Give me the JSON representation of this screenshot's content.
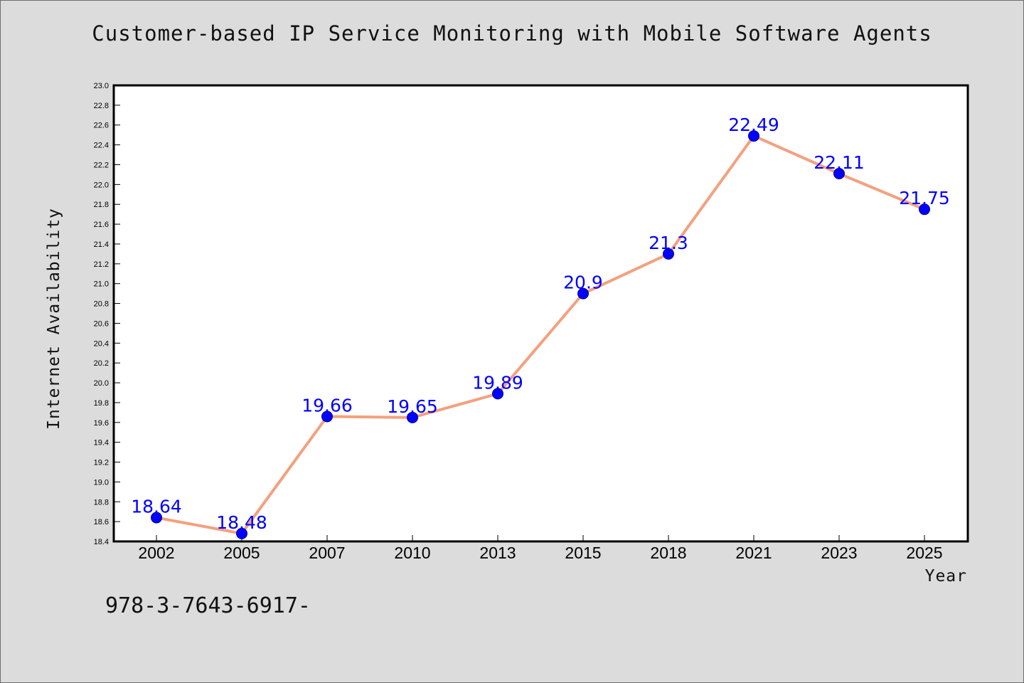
{
  "chart_data": {
    "type": "line",
    "title": "Customer-based IP Service Monitoring with Mobile Software Agents",
    "xlabel": "Year",
    "ylabel": "Internet Availability",
    "categories": [
      "2002",
      "2005",
      "2007",
      "2010",
      "2013",
      "2015",
      "2018",
      "2021",
      "2023",
      "2025"
    ],
    "series": [
      {
        "values": [
          18.64,
          18.48,
          19.66,
          19.65,
          19.89,
          20.9,
          21.3,
          22.49,
          22.11,
          21.75
        ]
      }
    ],
    "data_labels": [
      "18.64",
      "18.48",
      "19.66",
      "19.65",
      "19.89",
      "20.9",
      "21.3",
      "22.49",
      "22.11",
      "21.75"
    ],
    "ylim": [
      18.4,
      23.0
    ],
    "yticks": [
      "18.4",
      "18.6",
      "18.8",
      "19.0",
      "19.2",
      "19.4",
      "19.6",
      "19.8",
      "20.0",
      "20.2",
      "20.4",
      "20.6",
      "20.8",
      "21.0",
      "21.2",
      "21.4",
      "21.6",
      "21.8",
      "22.0",
      "22.2",
      "22.4",
      "22.6",
      "22.8",
      "23.0"
    ],
    "grid": false,
    "legend": "none",
    "colors": {
      "line": "#f4a07e",
      "marker": "#0000ff",
      "marker_edge": "#00008b",
      "label": "#0000ff"
    }
  },
  "footer": {
    "code": "978-3-7643-6917-"
  }
}
